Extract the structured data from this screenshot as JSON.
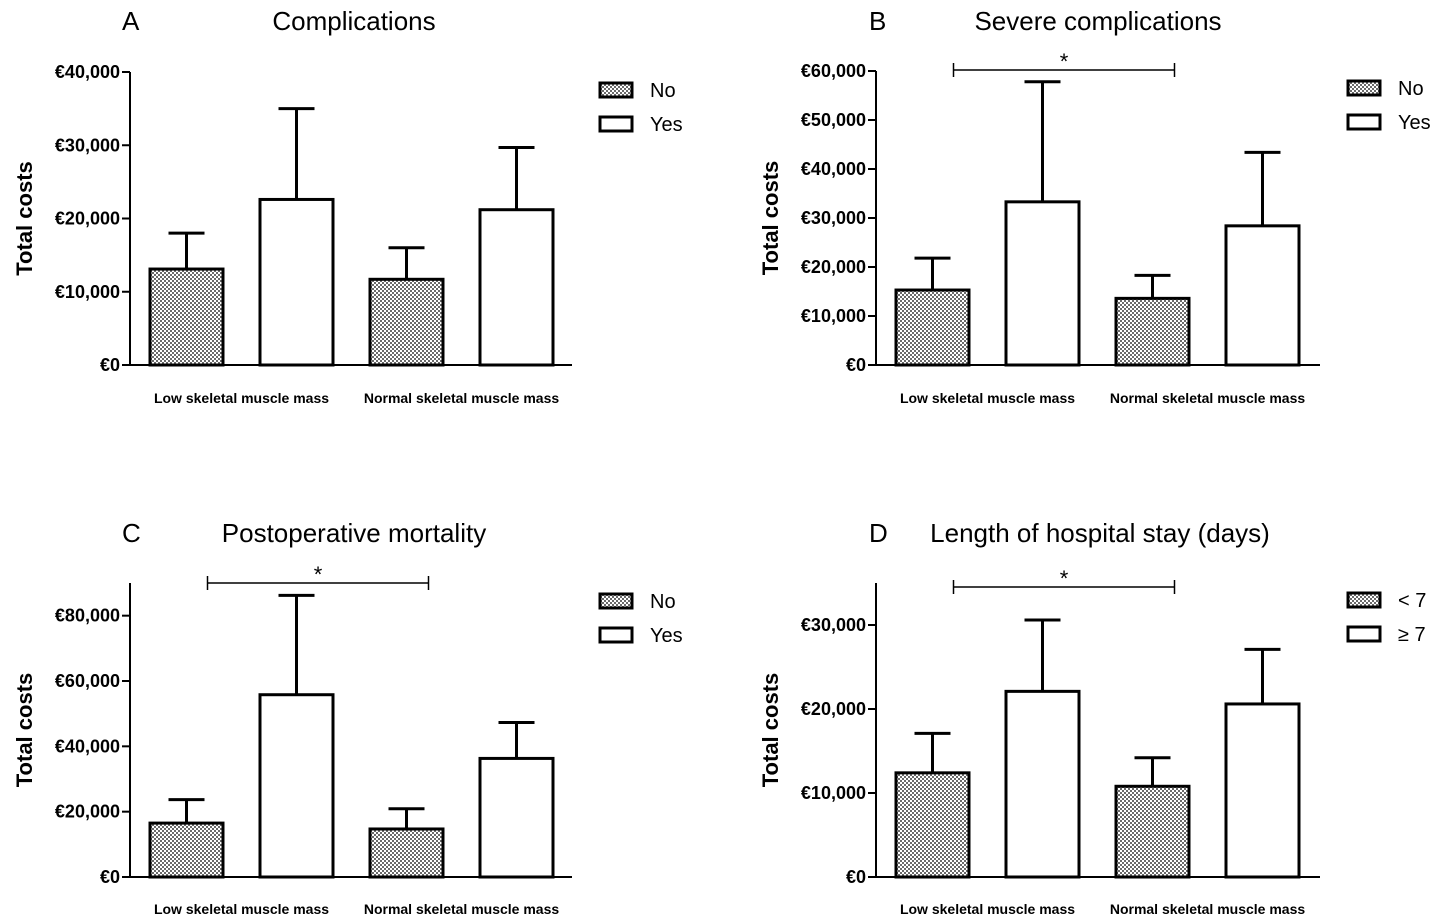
{
  "colors": {
    "stroke": "#000000",
    "fill_no": "#b0b0b0",
    "fill_yes": "#ffffff",
    "background": "#ffffff"
  },
  "chart_data": [
    {
      "type": "bar",
      "panel": "A",
      "title": "Complications",
      "ylabel": "Total costs",
      "ylim": [
        0,
        40000
      ],
      "yticks": [
        0,
        10000,
        20000,
        30000,
        40000
      ],
      "ytick_labels": [
        "€0",
        "€10,000",
        "€20,000",
        "€30,000",
        "€40,000"
      ],
      "categories": [
        "Low skeletal muscle mass",
        "Normal skeletal muscle mass"
      ],
      "series": [
        {
          "name": "No",
          "pattern": "checker",
          "values": [
            13100,
            11700
          ],
          "error": [
            4900,
            4300
          ]
        },
        {
          "name": "Yes",
          "pattern": "plain",
          "values": [
            22600,
            21200
          ],
          "error": [
            12400,
            8500
          ]
        }
      ],
      "significance": null,
      "legend_position": "top-right"
    },
    {
      "type": "bar",
      "panel": "B",
      "title": "Severe complications",
      "ylabel": "Total costs",
      "ylim": [
        0,
        60000
      ],
      "yticks": [
        0,
        10000,
        20000,
        30000,
        40000,
        50000,
        60000
      ],
      "ytick_labels": [
        "€0",
        "€10,000",
        "€20,000",
        "€30,000",
        "€40,000",
        "€50,000",
        "€60,000"
      ],
      "categories": [
        "Low skeletal muscle mass",
        "Normal skeletal muscle mass"
      ],
      "series": [
        {
          "name": "No",
          "pattern": "checker",
          "values": [
            15300,
            13600
          ],
          "error": [
            6500,
            4700
          ]
        },
        {
          "name": "Yes",
          "pattern": "plain",
          "values": [
            33300,
            28400
          ],
          "error": [
            24500,
            15000
          ]
        }
      ],
      "significance": {
        "label": "*",
        "level": 60000
      },
      "legend_position": "top-right"
    },
    {
      "type": "bar",
      "panel": "C",
      "title": "Postoperative mortality",
      "ylabel": "Total costs",
      "ylim": [
        0,
        90000
      ],
      "yticks": [
        0,
        20000,
        40000,
        60000,
        80000
      ],
      "ytick_labels": [
        "€0",
        "€20,000",
        "€40,000",
        "€60,000",
        "€80,000"
      ],
      "categories": [
        "Low skeletal muscle mass",
        "Normal skeletal muscle mass"
      ],
      "series": [
        {
          "name": "No",
          "pattern": "checker",
          "values": [
            16500,
            14700
          ],
          "error": [
            7200,
            6200
          ]
        },
        {
          "name": "Yes",
          "pattern": "plain",
          "values": [
            55800,
            36300
          ],
          "error": [
            30400,
            11000
          ]
        }
      ],
      "significance": {
        "label": "*",
        "level": 90000
      },
      "legend_position": "top-right"
    },
    {
      "type": "bar",
      "panel": "D",
      "title": "Length of hospital stay (days)",
      "ylabel": "Total costs",
      "ylim": [
        0,
        35000
      ],
      "yticks": [
        0,
        10000,
        20000,
        30000
      ],
      "ytick_labels": [
        "€0",
        "€10,000",
        "€20,000",
        "€30,000"
      ],
      "categories": [
        "Low skeletal muscle mass",
        "Normal skeletal muscle mass"
      ],
      "series": [
        {
          "name": "< 7",
          "pattern": "checker",
          "values": [
            12400,
            10800
          ],
          "error": [
            4700,
            3400
          ]
        },
        {
          "name": "≥ 7",
          "pattern": "plain",
          "values": [
            22100,
            20600
          ],
          "error": [
            8500,
            6500
          ]
        }
      ],
      "significance": {
        "label": "*",
        "level": 34500
      },
      "legend_position": "top-right"
    }
  ]
}
